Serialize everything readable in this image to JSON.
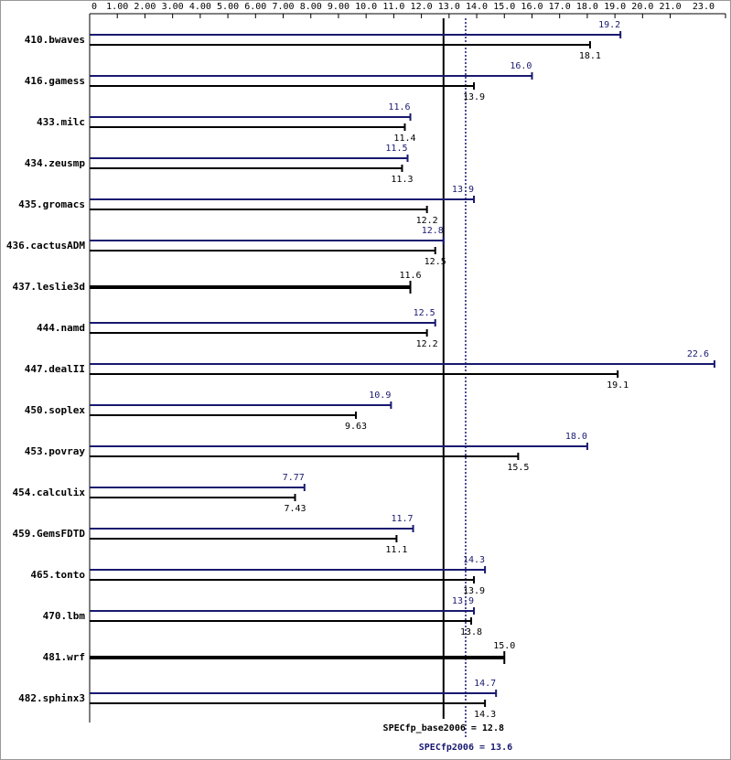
{
  "chart_data": {
    "type": "bar",
    "categories": [
      "410.bwaves",
      "416.gamess",
      "433.milc",
      "434.zeusmp",
      "435.gromacs",
      "436.cactusADM",
      "437.leslie3d",
      "444.namd",
      "447.dealII",
      "450.soplex",
      "453.povray",
      "454.calculix",
      "459.GemsFDTD",
      "465.tonto",
      "470.lbm",
      "481.wrf",
      "482.sphinx3"
    ],
    "series": [
      {
        "color": "#191970",
        "values": [
          19.2,
          16.0,
          11.6,
          11.5,
          13.9,
          12.8,
          null,
          12.5,
          22.6,
          10.9,
          18.0,
          7.77,
          11.7,
          14.3,
          13.9,
          null,
          14.7
        ],
        "value_labels": [
          "19.2",
          "16.0",
          "11.6",
          "11.5",
          "13.9",
          "12.8",
          null,
          "12.5",
          "22.6",
          "10.9",
          "18.0",
          "7.77",
          "11.7",
          "14.3",
          "13.9",
          null,
          "14.7"
        ]
      },
      {
        "color": "#000000",
        "values": [
          18.1,
          13.9,
          11.4,
          11.3,
          12.2,
          12.5,
          11.6,
          12.2,
          19.1,
          9.63,
          15.5,
          7.43,
          11.1,
          13.9,
          13.8,
          15.0,
          14.3
        ],
        "value_labels": [
          "18.1",
          "13.9",
          "11.4",
          "11.3",
          "12.2",
          "12.5",
          "11.6",
          "12.2",
          "19.1",
          "9.63",
          "15.5",
          "7.43",
          "11.1",
          "13.9",
          "13.8",
          "15.0",
          "14.3"
        ]
      }
    ],
    "xlim": [
      0,
      23
    ],
    "xticks": [
      0,
      {
        "value": 1,
        "label": "1.00"
      },
      {
        "value": 2,
        "label": "2.00"
      },
      {
        "value": 3,
        "label": "3.00"
      },
      {
        "value": 4,
        "label": "4.00"
      },
      {
        "value": 5,
        "label": "5.00"
      },
      {
        "value": 6,
        "label": "6.00"
      },
      {
        "value": 7,
        "label": "7.00"
      },
      {
        "value": 8,
        "label": "8.00"
      },
      {
        "value": 9,
        "label": "9.00"
      },
      {
        "value": 10,
        "label": "10.0"
      },
      {
        "value": 11,
        "label": "11.0"
      },
      {
        "value": 12,
        "label": "12.0"
      },
      {
        "value": 13,
        "label": "13.0"
      },
      {
        "value": 14,
        "label": "14.0"
      },
      {
        "value": 15,
        "label": "15.0"
      },
      {
        "value": 16,
        "label": "16.0"
      },
      {
        "value": 17,
        "label": "17.0"
      },
      {
        "value": 18,
        "label": "18.0"
      },
      {
        "value": 19,
        "label": "19.0"
      },
      {
        "value": 20,
        "label": "20.0"
      },
      {
        "value": 21,
        "label": "21.0"
      },
      {
        "value": 23,
        "label": "23.0"
      }
    ],
    "reference_lines": [
      {
        "label": "SPECfp_base2006 = 12.8",
        "value": 12.8,
        "color": "#000000",
        "dashed": false
      },
      {
        "label": "SPECfp2006 = 13.6",
        "value": 13.6,
        "color": "#191970",
        "dashed": true
      }
    ]
  }
}
